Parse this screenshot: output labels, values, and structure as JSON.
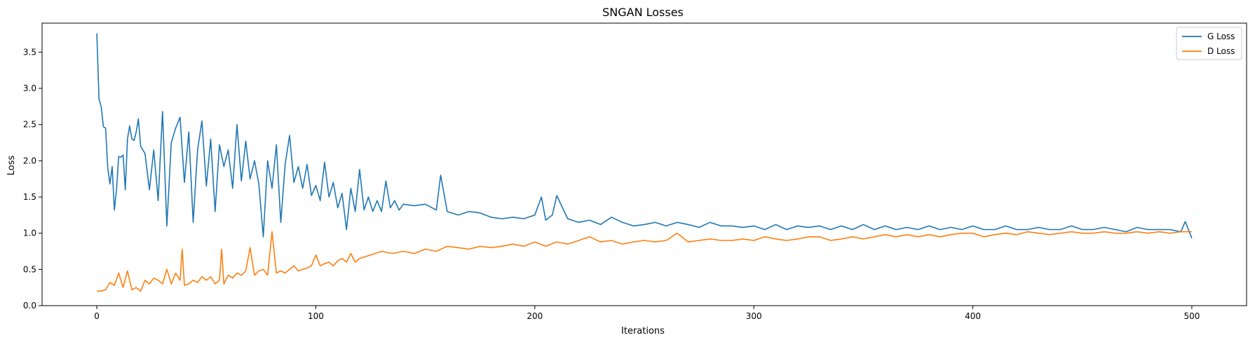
{
  "chart_data": {
    "type": "line",
    "title": "SNGAN Losses",
    "xlabel": "Iterations",
    "ylabel": "Loss",
    "xlim": [
      -25,
      525
    ],
    "ylim": [
      0.0,
      3.9
    ],
    "x_ticks": [
      0,
      100,
      200,
      300,
      400,
      500
    ],
    "x_tick_labels": [
      "0",
      "100",
      "200",
      "300",
      "400",
      "500"
    ],
    "y_ticks": [
      0.0,
      0.5,
      1.0,
      1.5,
      2.0,
      2.5,
      3.0,
      3.5
    ],
    "y_tick_labels": [
      "0.0",
      "0.5",
      "1.0",
      "1.5",
      "2.0",
      "2.5",
      "3.0",
      "3.5"
    ],
    "grid": false,
    "legend_position": "top-right",
    "series": [
      {
        "name": "G Loss",
        "color": "#1f77b4",
        "x": [
          0,
          1,
          2,
          3,
          4,
          5,
          6,
          7,
          8,
          9,
          10,
          11,
          12,
          13,
          14,
          15,
          16,
          17,
          18,
          19,
          20,
          22,
          24,
          26,
          28,
          30,
          32,
          34,
          36,
          38,
          40,
          42,
          44,
          46,
          48,
          50,
          52,
          54,
          56,
          58,
          60,
          62,
          64,
          66,
          68,
          70,
          72,
          74,
          76,
          78,
          80,
          82,
          84,
          86,
          88,
          90,
          92,
          94,
          96,
          98,
          100,
          102,
          104,
          106,
          108,
          110,
          112,
          114,
          116,
          118,
          120,
          122,
          124,
          126,
          128,
          130,
          132,
          134,
          136,
          138,
          140,
          145,
          150,
          155,
          157,
          160,
          165,
          170,
          175,
          180,
          185,
          190,
          195,
          200,
          203,
          205,
          208,
          210,
          215,
          220,
          225,
          230,
          235,
          240,
          245,
          250,
          255,
          260,
          265,
          270,
          275,
          280,
          285,
          290,
          295,
          300,
          305,
          310,
          315,
          320,
          325,
          330,
          335,
          340,
          345,
          350,
          355,
          360,
          365,
          370,
          375,
          380,
          385,
          390,
          395,
          400,
          405,
          410,
          415,
          420,
          425,
          430,
          435,
          440,
          445,
          450,
          455,
          460,
          465,
          470,
          475,
          480,
          485,
          490,
          495,
          497,
          500
        ],
        "values": [
          3.76,
          2.85,
          2.75,
          2.47,
          2.45,
          1.9,
          1.68,
          1.92,
          1.32,
          1.6,
          2.06,
          2.05,
          2.08,
          1.6,
          2.3,
          2.48,
          2.3,
          2.28,
          2.4,
          2.58,
          2.2,
          2.1,
          1.6,
          2.15,
          1.45,
          2.68,
          1.1,
          2.25,
          2.45,
          2.6,
          1.7,
          2.4,
          1.15,
          2.15,
          2.55,
          1.65,
          2.3,
          1.3,
          2.22,
          1.92,
          2.15,
          1.62,
          2.5,
          1.72,
          2.27,
          1.75,
          2.0,
          1.68,
          0.95,
          2.0,
          1.62,
          2.22,
          1.15,
          1.95,
          2.35,
          1.7,
          1.92,
          1.62,
          1.95,
          1.52,
          1.66,
          1.45,
          1.98,
          1.5,
          1.7,
          1.35,
          1.55,
          1.05,
          1.62,
          1.3,
          1.88,
          1.32,
          1.5,
          1.3,
          1.45,
          1.3,
          1.72,
          1.35,
          1.45,
          1.32,
          1.4,
          1.38,
          1.4,
          1.32,
          1.8,
          1.3,
          1.25,
          1.3,
          1.28,
          1.22,
          1.2,
          1.22,
          1.2,
          1.25,
          1.5,
          1.18,
          1.25,
          1.52,
          1.2,
          1.15,
          1.18,
          1.12,
          1.22,
          1.15,
          1.1,
          1.12,
          1.15,
          1.1,
          1.15,
          1.12,
          1.08,
          1.15,
          1.1,
          1.1,
          1.08,
          1.1,
          1.05,
          1.12,
          1.05,
          1.1,
          1.08,
          1.1,
          1.05,
          1.1,
          1.05,
          1.12,
          1.05,
          1.1,
          1.05,
          1.08,
          1.05,
          1.1,
          1.05,
          1.08,
          1.05,
          1.1,
          1.05,
          1.05,
          1.1,
          1.05,
          1.05,
          1.08,
          1.05,
          1.05,
          1.1,
          1.05,
          1.05,
          1.08,
          1.05,
          1.02,
          1.08,
          1.05,
          1.05,
          1.05,
          1.02,
          1.16,
          0.93
        ]
      },
      {
        "name": "D Loss",
        "color": "#ff7f0e",
        "x": [
          0,
          2,
          4,
          6,
          8,
          10,
          12,
          14,
          16,
          18,
          20,
          22,
          24,
          26,
          28,
          30,
          32,
          34,
          36,
          38,
          39,
          40,
          42,
          44,
          46,
          48,
          50,
          52,
          54,
          56,
          57,
          58,
          60,
          62,
          64,
          66,
          68,
          70,
          72,
          74,
          76,
          78,
          80,
          82,
          84,
          86,
          88,
          90,
          92,
          94,
          96,
          98,
          100,
          102,
          104,
          106,
          108,
          110,
          112,
          114,
          116,
          118,
          120,
          125,
          130,
          135,
          140,
          145,
          150,
          155,
          160,
          165,
          170,
          175,
          180,
          185,
          190,
          195,
          200,
          205,
          210,
          215,
          220,
          225,
          230,
          235,
          240,
          245,
          250,
          255,
          260,
          265,
          270,
          275,
          280,
          285,
          290,
          295,
          300,
          305,
          310,
          315,
          320,
          325,
          330,
          335,
          340,
          345,
          350,
          355,
          360,
          365,
          370,
          375,
          380,
          385,
          390,
          395,
          400,
          405,
          410,
          415,
          420,
          425,
          430,
          435,
          440,
          445,
          450,
          455,
          460,
          465,
          470,
          475,
          480,
          485,
          490,
          495,
          500
        ],
        "values": [
          0.2,
          0.2,
          0.22,
          0.32,
          0.28,
          0.45,
          0.25,
          0.48,
          0.22,
          0.25,
          0.2,
          0.35,
          0.3,
          0.38,
          0.35,
          0.3,
          0.5,
          0.3,
          0.45,
          0.35,
          0.78,
          0.28,
          0.3,
          0.35,
          0.32,
          0.4,
          0.35,
          0.4,
          0.3,
          0.35,
          0.78,
          0.3,
          0.42,
          0.38,
          0.45,
          0.42,
          0.48,
          0.8,
          0.42,
          0.48,
          0.5,
          0.42,
          1.02,
          0.45,
          0.48,
          0.45,
          0.5,
          0.55,
          0.48,
          0.5,
          0.52,
          0.55,
          0.7,
          0.55,
          0.58,
          0.6,
          0.55,
          0.62,
          0.65,
          0.6,
          0.72,
          0.6,
          0.65,
          0.7,
          0.75,
          0.72,
          0.75,
          0.72,
          0.78,
          0.75,
          0.82,
          0.8,
          0.78,
          0.82,
          0.8,
          0.82,
          0.85,
          0.82,
          0.88,
          0.82,
          0.88,
          0.85,
          0.9,
          0.95,
          0.88,
          0.9,
          0.85,
          0.88,
          0.9,
          0.88,
          0.9,
          1.0,
          0.88,
          0.9,
          0.92,
          0.9,
          0.9,
          0.92,
          0.9,
          0.95,
          0.92,
          0.9,
          0.92,
          0.95,
          0.95,
          0.9,
          0.92,
          0.95,
          0.92,
          0.95,
          0.98,
          0.95,
          0.98,
          0.95,
          0.98,
          0.95,
          0.98,
          1.0,
          1.0,
          0.95,
          0.98,
          1.0,
          0.98,
          1.02,
          1.0,
          0.98,
          1.0,
          1.02,
          1.0,
          1.0,
          1.02,
          1.0,
          1.0,
          1.02,
          1.0,
          1.02,
          1.0,
          1.02,
          1.02
        ]
      }
    ]
  }
}
